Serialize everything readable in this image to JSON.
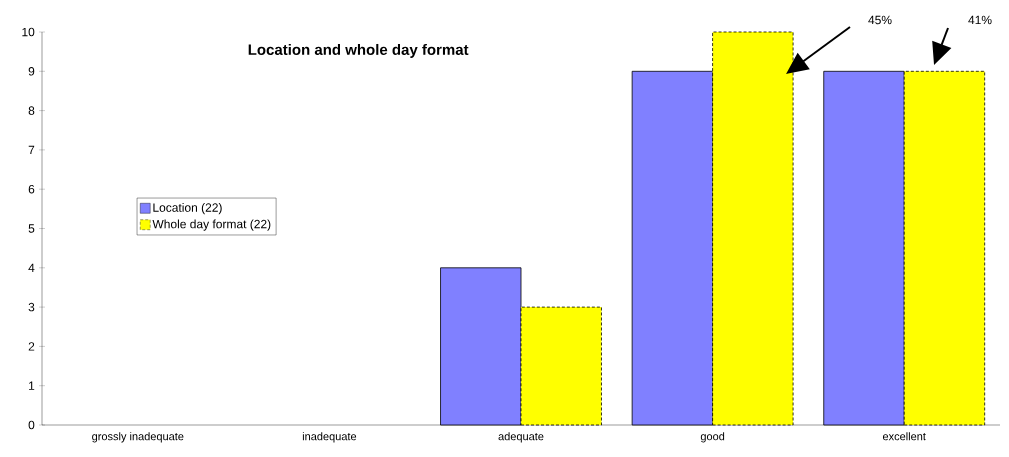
{
  "chart_data": {
    "type": "bar",
    "title": "Location and whole day format",
    "categories": [
      "grossly inadequate",
      "inadequate",
      "adequate",
      "good",
      "excellent"
    ],
    "series": [
      {
        "name": "Location (22)",
        "color": "#8080ff",
        "values": [
          0,
          0,
          4,
          9,
          9
        ]
      },
      {
        "name": "Whole day format (22)",
        "color": "#ffff00",
        "values": [
          0,
          0,
          3,
          10,
          9
        ],
        "line_style": "dashed"
      }
    ],
    "ylim": [
      0,
      10
    ],
    "yticks": [
      0,
      1,
      2,
      3,
      4,
      5,
      6,
      7,
      8,
      9,
      10
    ],
    "grid": false,
    "legend": "left",
    "annotations": [
      "45%",
      "41%"
    ]
  }
}
